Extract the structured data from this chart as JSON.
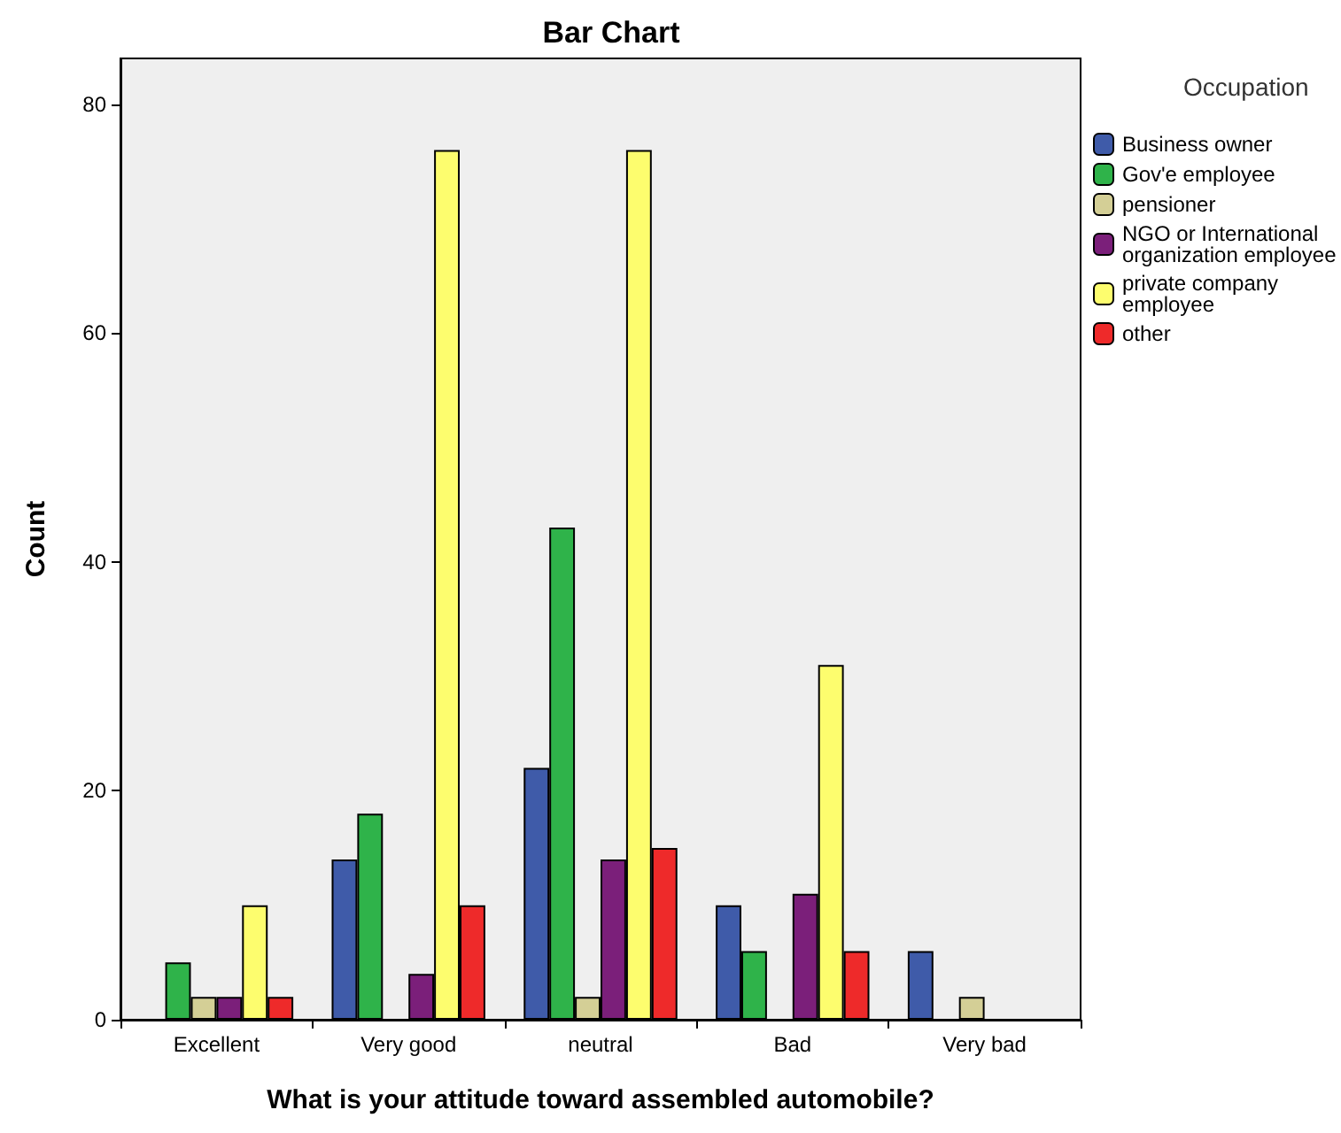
{
  "chart_data": {
    "type": "bar",
    "title": "Bar Chart",
    "xlabel": "What is your attitude toward assembled automobile?",
    "ylabel": "Count",
    "legend_title": "Occupation",
    "legend": "right",
    "grid": false,
    "categories": [
      "Excellent",
      "Very good",
      "neutral",
      "Bad",
      "Very bad"
    ],
    "series": [
      {
        "name": "Business owner",
        "color": "#3f5ba9",
        "values": [
          null,
          14,
          22,
          10,
          6
        ]
      },
      {
        "name": "Gov'e employee",
        "color": "#2fb34a",
        "values": [
          5,
          18,
          43,
          6,
          null
        ]
      },
      {
        "name": "pensioner",
        "color": "#d4cf96",
        "values": [
          2,
          null,
          2,
          null,
          2
        ]
      },
      {
        "name": "NGO or International organization employee",
        "color": "#7b1f7a",
        "values": [
          2,
          4,
          14,
          11,
          null
        ]
      },
      {
        "name": "private company employee",
        "color": "#fdfd6e",
        "values": [
          10,
          76,
          76,
          31,
          null
        ]
      },
      {
        "name": "other",
        "color": "#ee2a2a",
        "values": [
          2,
          10,
          15,
          6,
          null
        ]
      }
    ],
    "ylim": [
      0,
      84
    ],
    "yticks": [
      0,
      20,
      40,
      60,
      80
    ]
  }
}
